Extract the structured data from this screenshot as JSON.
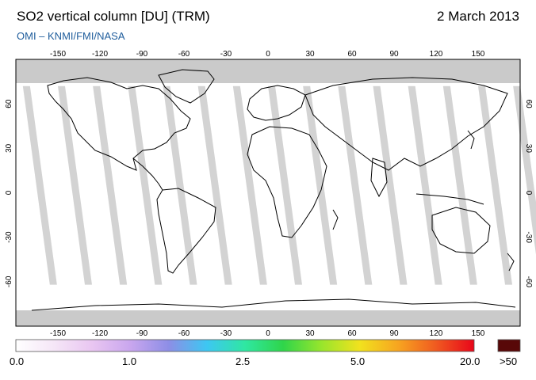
{
  "header": {
    "title": "SO2 vertical column [DU] (TRM)",
    "date": "2 March 2013",
    "credit": "OMI  –  KNMI/FMI/NASA"
  },
  "map": {
    "lon_ticks": [
      "-150",
      "-120",
      "-90",
      "-60",
      "-30",
      "0",
      "30",
      "60",
      "90",
      "120",
      "150"
    ],
    "lat_ticks": [
      "60",
      "30",
      "0",
      "-30",
      "-60"
    ],
    "colors": {
      "ocean": "#ffffff",
      "polar_no_data": "#cacaca",
      "orbit_swath": "#cbcbcb",
      "coastline": "#000000"
    }
  },
  "colorbar": {
    "labels": [
      "0.0",
      "1.0",
      "2.5",
      "5.0",
      "20.0",
      ">50"
    ],
    "gradient_stops": [
      "#ffffff",
      "#f5e6f7",
      "#e9c6f1",
      "#c9a6ee",
      "#8d8ee6",
      "#3dc7f2",
      "#2fe7a2",
      "#2fd54a",
      "#98e52c",
      "#f1e21e",
      "#f7a520",
      "#f05a20",
      "#e8061a"
    ],
    "overflow_color": "#580808"
  }
}
